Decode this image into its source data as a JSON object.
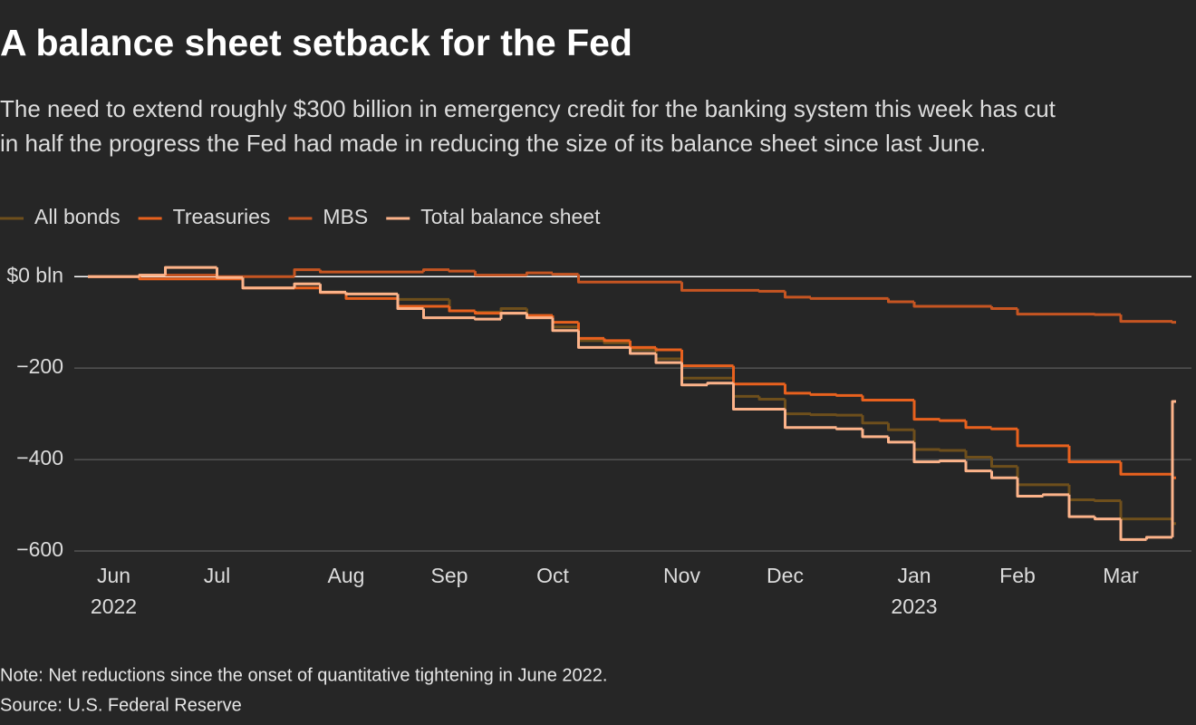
{
  "chart_data": {
    "type": "line",
    "title": "A balance sheet setback for the Fed",
    "subtitle": [
      "The need to extend roughly $300 billion in emergency credit for the banking system this week has cut",
      "in half the progress the Fed had made in reducing the size of its balance sheet since last June."
    ],
    "note": "Note: Net reductions since the onset of quantitative tightening in June 2022.",
    "source": "Source: U.S. Federal Reserve",
    "categories": [
      null,
      "Jun",
      null,
      null,
      null,
      "Jul",
      null,
      null,
      null,
      null,
      "Aug",
      null,
      null,
      null,
      "Sep",
      null,
      null,
      null,
      "Oct",
      null,
      null,
      null,
      null,
      "Nov",
      null,
      null,
      null,
      "Dec",
      null,
      null,
      null,
      null,
      "Jan",
      null,
      null,
      null,
      "Feb",
      null,
      null,
      null,
      "Mar",
      null,
      null
    ],
    "category_years": [
      null,
      "2022",
      null,
      null,
      null,
      null,
      null,
      null,
      null,
      null,
      null,
      null,
      null,
      null,
      null,
      null,
      null,
      null,
      null,
      null,
      null,
      null,
      null,
      null,
      null,
      null,
      null,
      null,
      null,
      null,
      null,
      null,
      "2023",
      null,
      null,
      null,
      null,
      null,
      null,
      null,
      null,
      null,
      null
    ],
    "series": [
      {
        "name": "All bonds",
        "color": "#6e4f1c",
        "values": [
          0,
          0,
          3,
          20,
          20,
          -2,
          -25,
          -25,
          -16,
          -34,
          -38,
          -38,
          -50,
          -50,
          -75,
          -78,
          -70,
          -85,
          -110,
          -140,
          -145,
          -160,
          -180,
          -222,
          -222,
          -262,
          -268,
          -300,
          -302,
          -303,
          -320,
          -335,
          -378,
          -380,
          -395,
          -415,
          -455,
          -455,
          -488,
          -490,
          -530,
          -530,
          -540
        ]
      },
      {
        "name": "Treasuries",
        "color": "#e8611e",
        "values": [
          0,
          0,
          -5,
          -5,
          -5,
          -5,
          -25,
          -25,
          -25,
          -35,
          -48,
          -48,
          -65,
          -65,
          -75,
          -80,
          -80,
          -85,
          -100,
          -135,
          -140,
          -155,
          -160,
          -195,
          -195,
          -235,
          -235,
          -255,
          -258,
          -260,
          -270,
          -270,
          -312,
          -315,
          -330,
          -333,
          -370,
          -370,
          -405,
          -405,
          -432,
          -432,
          -440
        ]
      },
      {
        "name": "MBS",
        "color": "#c65522",
        "values": [
          0,
          0,
          3,
          3,
          3,
          0,
          0,
          0,
          15,
          10,
          10,
          10,
          10,
          15,
          12,
          3,
          3,
          8,
          5,
          -12,
          -12,
          -12,
          -12,
          -30,
          -30,
          -30,
          -32,
          -45,
          -48,
          -48,
          -48,
          -55,
          -65,
          -65,
          -65,
          -70,
          -82,
          -82,
          -82,
          -83,
          -98,
          -98,
          -100
        ]
      },
      {
        "name": "Total balance sheet",
        "color": "#fcb38a",
        "values": [
          0,
          0,
          3,
          20,
          20,
          -2,
          -25,
          -25,
          -16,
          -34,
          -38,
          -38,
          -70,
          -90,
          -90,
          -93,
          -80,
          -90,
          -118,
          -155,
          -155,
          -168,
          -188,
          -237,
          -233,
          -290,
          -290,
          -330,
          -330,
          -333,
          -350,
          -362,
          -405,
          -403,
          -425,
          -440,
          -480,
          -477,
          -525,
          -530,
          -575,
          -570,
          -273
        ]
      }
    ],
    "ylim": [
      -600,
      40
    ],
    "yticks": [
      {
        "value": -600,
        "label": "−600"
      },
      {
        "value": -400,
        "label": "−400"
      },
      {
        "value": -200,
        "label": "−200"
      },
      {
        "value": 0,
        "label": "$0 bln"
      }
    ],
    "grid": true
  }
}
